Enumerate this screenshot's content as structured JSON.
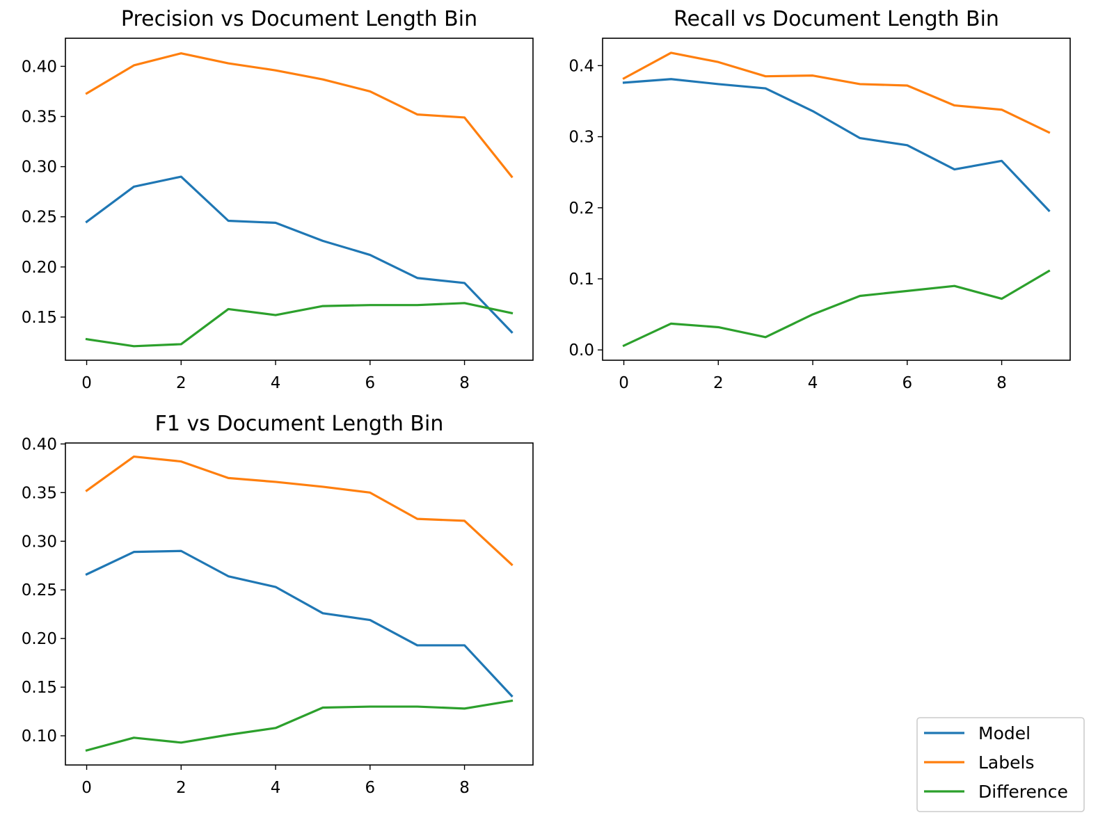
{
  "colors": {
    "Model": "#1f77b4",
    "Labels": "#ff7f0e",
    "Difference": "#2ca02c"
  },
  "legend": {
    "placement": "bottom-right",
    "entries": [
      {
        "label": "Model",
        "color": "#1f77b4"
      },
      {
        "label": "Labels",
        "color": "#ff7f0e"
      },
      {
        "label": "Difference",
        "color": "#2ca02c"
      }
    ]
  },
  "chart_data": [
    {
      "type": "line",
      "title": "Precision vs Document Length Bin",
      "xlabel": "",
      "ylabel": "",
      "x": [
        0,
        1,
        2,
        3,
        4,
        5,
        6,
        7,
        8,
        9
      ],
      "xticks": [
        "0",
        "2",
        "4",
        "6",
        "8"
      ],
      "xlim": [
        -0.45,
        9.45
      ],
      "yticks": [
        "0.15",
        "0.20",
        "0.25",
        "0.30",
        "0.35",
        "0.40"
      ],
      "ylim": [
        0.107,
        0.428
      ],
      "grid": false,
      "series": [
        {
          "name": "Model",
          "values": [
            0.245,
            0.28,
            0.29,
            0.246,
            0.244,
            0.226,
            0.212,
            0.189,
            0.184,
            0.135
          ]
        },
        {
          "name": "Labels",
          "values": [
            0.373,
            0.401,
            0.413,
            0.403,
            0.396,
            0.387,
            0.375,
            0.352,
            0.349,
            0.29
          ]
        },
        {
          "name": "Difference",
          "values": [
            0.128,
            0.121,
            0.123,
            0.158,
            0.152,
            0.161,
            0.162,
            0.162,
            0.164,
            0.154
          ]
        }
      ]
    },
    {
      "type": "line",
      "title": "Recall vs Document Length Bin",
      "xlabel": "",
      "ylabel": "",
      "x": [
        0,
        1,
        2,
        3,
        4,
        5,
        6,
        7,
        8,
        9
      ],
      "xticks": [
        "0",
        "2",
        "4",
        "6",
        "8"
      ],
      "xlim": [
        -0.45,
        9.45
      ],
      "yticks": [
        "0.0",
        "0.1",
        "0.2",
        "0.3",
        "0.4"
      ],
      "ylim": [
        -0.0145,
        0.4385
      ],
      "grid": false,
      "series": [
        {
          "name": "Model",
          "values": [
            0.376,
            0.381,
            0.374,
            0.368,
            0.336,
            0.298,
            0.288,
            0.254,
            0.266,
            0.196
          ]
        },
        {
          "name": "Labels",
          "values": [
            0.382,
            0.418,
            0.405,
            0.385,
            0.386,
            0.374,
            0.372,
            0.344,
            0.338,
            0.306
          ]
        },
        {
          "name": "Difference",
          "values": [
            0.006,
            0.037,
            0.032,
            0.018,
            0.05,
            0.076,
            0.083,
            0.09,
            0.072,
            0.111
          ]
        }
      ]
    },
    {
      "type": "line",
      "title": "F1 vs Document Length Bin",
      "xlabel": "",
      "ylabel": "",
      "x": [
        0,
        1,
        2,
        3,
        4,
        5,
        6,
        7,
        8,
        9
      ],
      "xticks": [
        "0",
        "2",
        "4",
        "6",
        "8"
      ],
      "xlim": [
        -0.45,
        9.45
      ],
      "yticks": [
        "0.10",
        "0.15",
        "0.20",
        "0.25",
        "0.30",
        "0.35",
        "0.40"
      ],
      "ylim": [
        0.07,
        0.401
      ],
      "grid": false,
      "series": [
        {
          "name": "Model",
          "values": [
            0.266,
            0.289,
            0.29,
            0.264,
            0.253,
            0.226,
            0.219,
            0.193,
            0.193,
            0.141
          ]
        },
        {
          "name": "Labels",
          "values": [
            0.352,
            0.387,
            0.382,
            0.365,
            0.361,
            0.356,
            0.35,
            0.323,
            0.321,
            0.276
          ]
        },
        {
          "name": "Difference",
          "values": [
            0.085,
            0.098,
            0.093,
            0.101,
            0.108,
            0.129,
            0.13,
            0.13,
            0.128,
            0.136
          ]
        }
      ]
    }
  ]
}
